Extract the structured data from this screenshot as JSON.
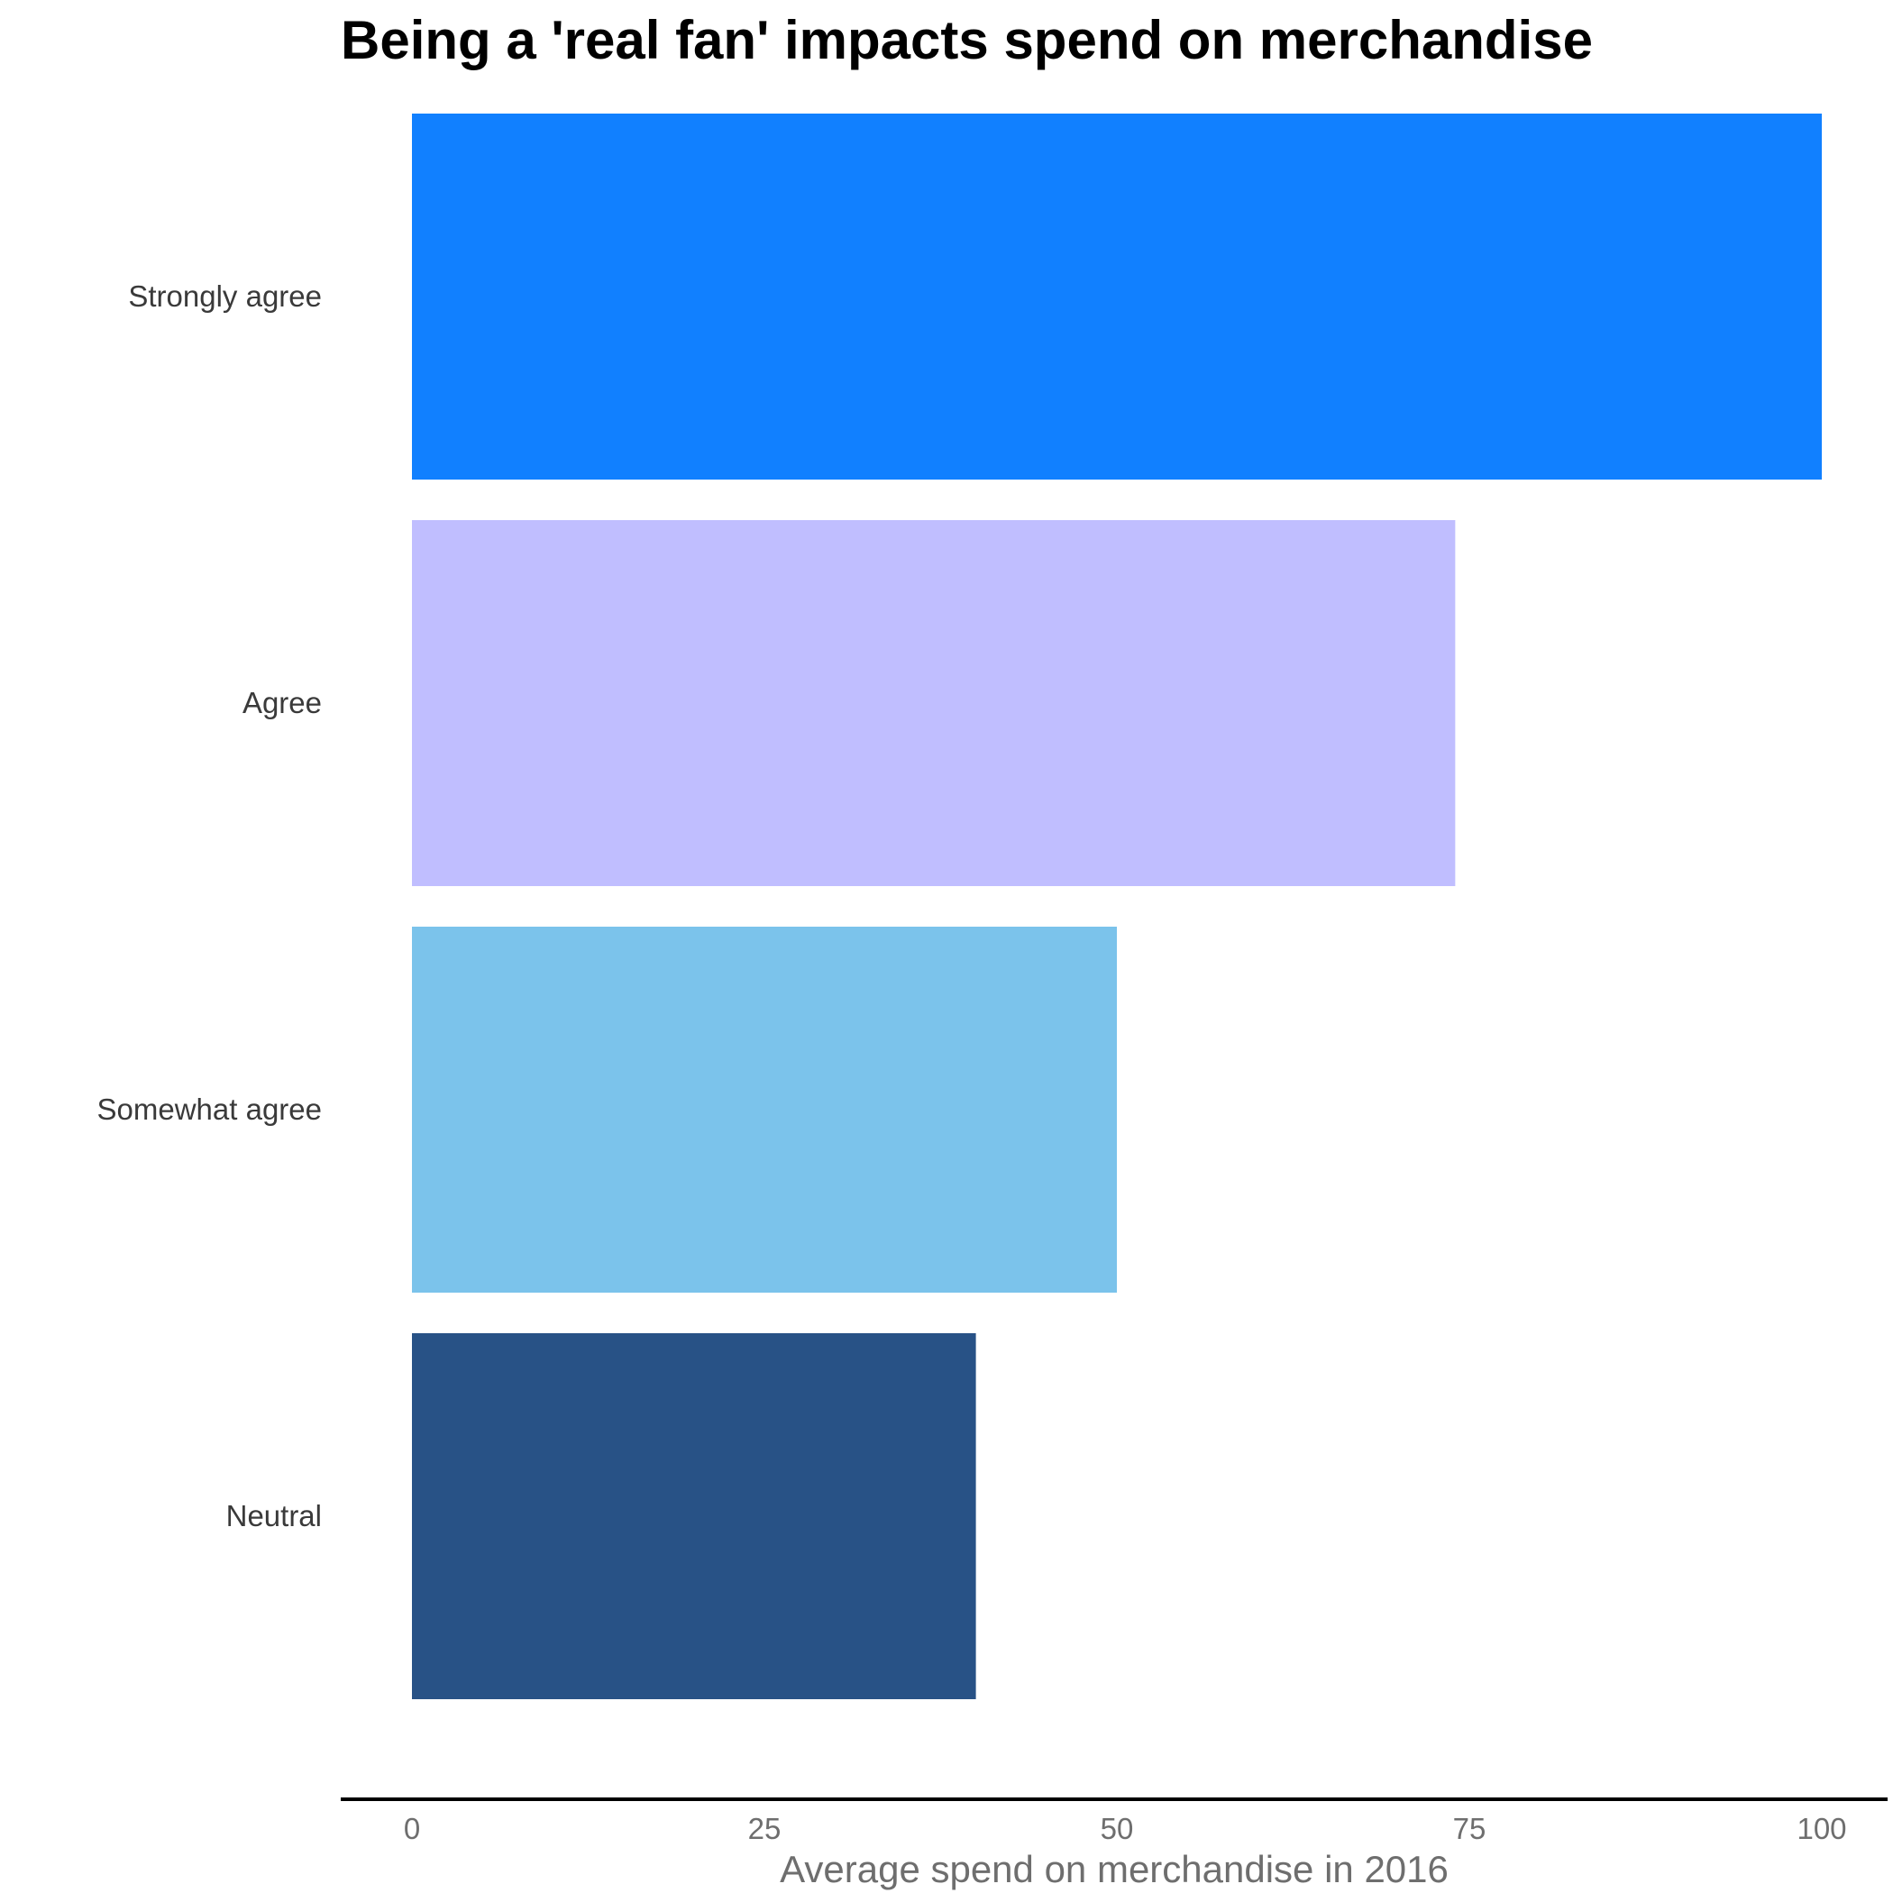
{
  "chart_data": {
    "type": "bar",
    "orientation": "horizontal",
    "title": "Being a 'real fan' impacts spend on merchandise",
    "xlabel": "Average spend on merchandise in 2016",
    "ylabel": "",
    "categories": [
      "Strongly agree",
      "Agree",
      "Somewhat agree",
      "Neutral"
    ],
    "values": [
      100,
      74,
      50,
      40
    ],
    "colors": [
      "#1180ff",
      "#c0beff",
      "#7bc3eb",
      "#285286"
    ],
    "xlim": [
      0,
      100
    ],
    "xticks": [
      0,
      25,
      50,
      75,
      100
    ],
    "xtick_labels": [
      "0",
      "25",
      "50",
      "75",
      "100"
    ],
    "grid": false,
    "legend": "none"
  }
}
